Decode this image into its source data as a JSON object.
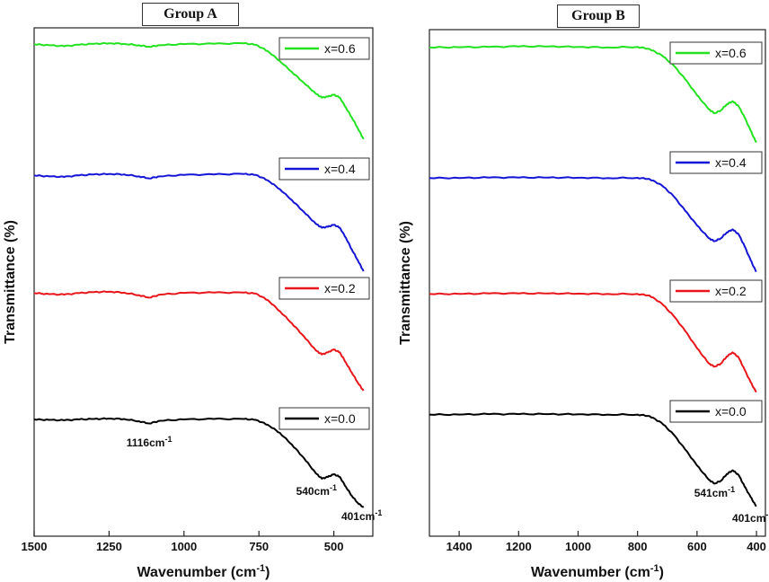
{
  "chart_data": [
    {
      "type": "line",
      "title": "Group A",
      "xlabel": "Wavenumber (cm",
      "xlabel_sup": "-1",
      "xlabel_close": ")",
      "ylabel": "Transmittance (%)",
      "xlim": [
        1500,
        370
      ],
      "x_reversed": true,
      "xticks": [
        1500,
        1250,
        1000,
        750,
        500
      ],
      "y_ticks_shown": false,
      "colors": {
        "x=0.0": "#000000",
        "x=0.2": "#e8161b",
        "x=0.4": "#1515d6",
        "x=0.6": "#22e21f"
      },
      "series": [
        {
          "name": "x=0.6",
          "color": "#22e21f",
          "x": [
            1500,
            1450,
            1400,
            1350,
            1300,
            1250,
            1200,
            1150,
            1116,
            1080,
            1000,
            900,
            800,
            760,
            720,
            680,
            640,
            600,
            560,
            540,
            520,
            500,
            480,
            460,
            440,
            420,
            401
          ],
          "y": [
            0.97,
            0.96,
            0.95,
            0.965,
            0.975,
            0.98,
            0.975,
            0.96,
            0.945,
            0.96,
            0.972,
            0.975,
            0.98,
            0.965,
            0.9,
            0.8,
            0.69,
            0.58,
            0.47,
            0.43,
            0.44,
            0.46,
            0.43,
            0.33,
            0.23,
            0.12,
            0.01
          ]
        },
        {
          "name": "x=0.4",
          "color": "#1515d6",
          "x": [
            1500,
            1450,
            1400,
            1350,
            1300,
            1250,
            1200,
            1150,
            1116,
            1080,
            1000,
            900,
            800,
            760,
            720,
            680,
            640,
            600,
            560,
            540,
            520,
            500,
            480,
            460,
            440,
            420,
            401
          ],
          "y": [
            0.97,
            0.96,
            0.955,
            0.97,
            0.98,
            0.985,
            0.98,
            0.96,
            0.94,
            0.96,
            0.975,
            0.98,
            0.985,
            0.975,
            0.92,
            0.83,
            0.72,
            0.6,
            0.48,
            0.44,
            0.45,
            0.47,
            0.44,
            0.34,
            0.22,
            0.11,
            0.0
          ]
        },
        {
          "name": "x=0.2",
          "color": "#e8161b",
          "x": [
            1500,
            1450,
            1400,
            1350,
            1300,
            1250,
            1200,
            1150,
            1116,
            1080,
            1000,
            900,
            800,
            760,
            720,
            680,
            640,
            600,
            560,
            540,
            520,
            500,
            480,
            460,
            440,
            420,
            401
          ],
          "y": [
            0.97,
            0.96,
            0.955,
            0.97,
            0.98,
            0.985,
            0.975,
            0.95,
            0.925,
            0.955,
            0.972,
            0.975,
            0.975,
            0.965,
            0.9,
            0.79,
            0.67,
            0.54,
            0.4,
            0.36,
            0.38,
            0.41,
            0.38,
            0.28,
            0.18,
            0.08,
            0.0
          ]
        },
        {
          "name": "x=0.0",
          "color": "#000000",
          "x": [
            1500,
            1450,
            1400,
            1350,
            1300,
            1250,
            1200,
            1150,
            1116,
            1080,
            1000,
            900,
            800,
            760,
            720,
            680,
            640,
            600,
            560,
            540,
            520,
            500,
            480,
            460,
            440,
            420,
            401
          ],
          "y": [
            0.98,
            0.975,
            0.97,
            0.98,
            0.985,
            0.99,
            0.985,
            0.96,
            0.935,
            0.965,
            0.98,
            0.985,
            0.985,
            0.975,
            0.92,
            0.83,
            0.7,
            0.55,
            0.38,
            0.32,
            0.34,
            0.37,
            0.34,
            0.23,
            0.13,
            0.05,
            0.0
          ]
        }
      ],
      "annotations": [
        {
          "text": "1116cm",
          "sup": "-1",
          "x": 1116
        },
        {
          "text": "540cm",
          "sup": "-1",
          "x": 540
        },
        {
          "text": "401cm",
          "sup": "-1",
          "x": 401
        }
      ],
      "legend": "top-right of each curve"
    },
    {
      "type": "line",
      "title": "Group B",
      "xlabel": "Wavenumber (cm",
      "xlabel_sup": "-1",
      "xlabel_close": ")",
      "ylabel": "Transmittance (%)",
      "xlim": [
        1500,
        370
      ],
      "x_reversed": true,
      "xticks": [
        1400,
        1200,
        1000,
        800,
        600,
        400
      ],
      "y_ticks_shown": false,
      "colors": {
        "x=0.0": "#000000",
        "x=0.2": "#e8161b",
        "x=0.4": "#1515d6",
        "x=0.6": "#22e21f"
      },
      "series": [
        {
          "name": "x=0.6",
          "color": "#22e21f",
          "x": [
            1500,
            1400,
            1300,
            1200,
            1100,
            1000,
            900,
            800,
            760,
            720,
            680,
            640,
            600,
            560,
            541,
            520,
            500,
            480,
            460,
            440,
            420,
            401
          ],
          "y": [
            0.975,
            0.977,
            0.98,
            0.985,
            0.985,
            0.98,
            0.975,
            0.98,
            0.96,
            0.9,
            0.8,
            0.66,
            0.5,
            0.36,
            0.32,
            0.35,
            0.41,
            0.44,
            0.39,
            0.28,
            0.15,
            0.03
          ]
        },
        {
          "name": "x=0.4",
          "color": "#1515d6",
          "x": [
            1500,
            1400,
            1300,
            1200,
            1100,
            1000,
            900,
            800,
            760,
            720,
            680,
            640,
            600,
            560,
            541,
            520,
            500,
            480,
            460,
            440,
            420,
            401
          ],
          "y": [
            0.98,
            0.98,
            0.985,
            0.985,
            0.985,
            0.983,
            0.98,
            0.982,
            0.97,
            0.91,
            0.8,
            0.65,
            0.5,
            0.37,
            0.34,
            0.37,
            0.43,
            0.46,
            0.41,
            0.29,
            0.15,
            0.03
          ]
        },
        {
          "name": "x=0.2",
          "color": "#e8161b",
          "x": [
            1500,
            1400,
            1300,
            1200,
            1100,
            1000,
            900,
            800,
            760,
            720,
            680,
            640,
            600,
            560,
            541,
            520,
            500,
            480,
            460,
            440,
            420,
            401
          ],
          "y": [
            0.98,
            0.98,
            0.985,
            0.985,
            0.985,
            0.983,
            0.98,
            0.98,
            0.965,
            0.89,
            0.77,
            0.62,
            0.45,
            0.3,
            0.27,
            0.3,
            0.37,
            0.41,
            0.36,
            0.24,
            0.12,
            0.02
          ]
        },
        {
          "name": "x=0.0",
          "color": "#000000",
          "x": [
            1500,
            1400,
            1300,
            1200,
            1100,
            1000,
            900,
            800,
            760,
            720,
            680,
            640,
            600,
            560,
            541,
            520,
            500,
            480,
            460,
            440,
            420,
            401
          ],
          "y": [
            0.985,
            0.985,
            0.99,
            0.99,
            0.99,
            0.988,
            0.985,
            0.985,
            0.97,
            0.9,
            0.78,
            0.62,
            0.45,
            0.3,
            0.26,
            0.29,
            0.36,
            0.4,
            0.35,
            0.23,
            0.12,
            0.02
          ]
        }
      ],
      "annotations": [
        {
          "text": "541cm",
          "sup": "-1",
          "x": 541
        },
        {
          "text": "401cm",
          "sup": "-1",
          "x": 401
        }
      ],
      "legend": "top-right of each curve"
    }
  ]
}
